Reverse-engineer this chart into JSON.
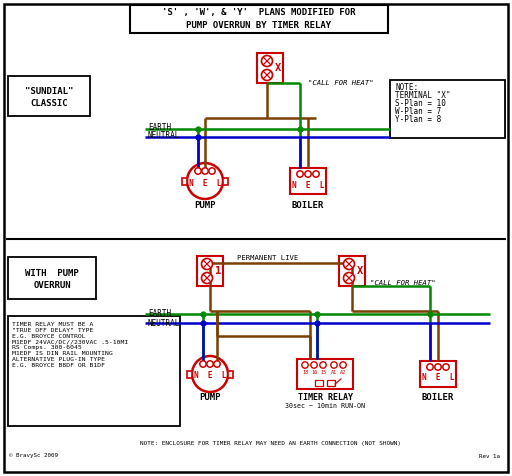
{
  "title_line1": "'S' , 'W', & 'Y'  PLANS MODIFIED FOR",
  "title_line2": "PUMP OVERRUN BY TIMER RELAY",
  "bg_color": "#ffffff",
  "red": "#cc0000",
  "brown": "#7B3F00",
  "green": "#008800",
  "blue": "#0000cc",
  "black": "#000000",
  "note_text": "NOTE:\nTERMINAL \"X\"\nS-Plan = 10\nW-Plan = 7\nY-Plan = 8",
  "timer_note": "TIMER RELAY MUST BE A\n\"TRUE OFF DELAY\" TYPE\nE.G. BROYCE CONTROL\nM1EDF 24VAC/DC//230VAC .5-10MI\nRS Comps. 300-6045\nM1EDF IS DIN RAIL MOUNTING\nALTERNATIVE PLUG-IN TYPE\nE.G. BROYCE B8DF OR B1DF",
  "bottom_note": "NOTE: ENCLOSURE FOR TIMER RELAY MAY NEED AN EARTH CONNECTION (NOT SHOWN)",
  "copyright": "© BravySc 2009",
  "rev": "Rev 1a"
}
